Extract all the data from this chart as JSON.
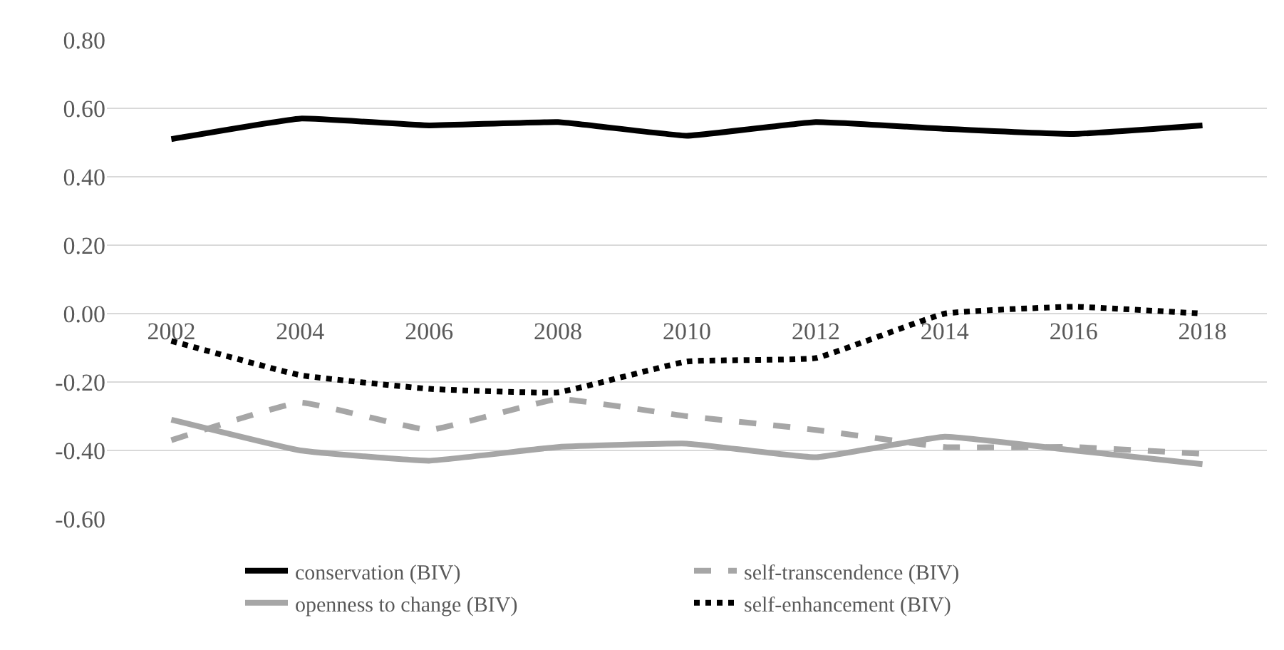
{
  "chart_data": {
    "type": "line",
    "categories": [
      "2002",
      "2004",
      "2006",
      "2008",
      "2010",
      "2012",
      "2014",
      "2016",
      "2018"
    ],
    "series": [
      {
        "name": "conservation (BIV)",
        "color": "#000000",
        "line_style": "solid",
        "values": [
          0.51,
          0.57,
          0.55,
          0.56,
          0.52,
          0.56,
          0.54,
          0.525,
          0.55
        ]
      },
      {
        "name": "self-transcendence (BIV)",
        "color": "#a6a6a6",
        "line_style": "dashed",
        "values": [
          -0.37,
          -0.26,
          -0.34,
          -0.25,
          -0.3,
          -0.34,
          -0.39,
          -0.39,
          -0.41
        ]
      },
      {
        "name": "openness to change (BIV)",
        "color": "#a6a6a6",
        "line_style": "solid",
        "values": [
          -0.31,
          -0.4,
          -0.43,
          -0.39,
          -0.38,
          -0.42,
          -0.36,
          -0.4,
          -0.44
        ]
      },
      {
        "name": "self-enhancement (BIV)",
        "color": "#000000",
        "line_style": "dotted",
        "values": [
          -0.08,
          -0.18,
          -0.22,
          -0.23,
          -0.14,
          -0.13,
          0.0,
          0.02,
          0.0
        ]
      }
    ],
    "ylim": [
      -0.6,
      0.8
    ],
    "yticks": [
      {
        "value": -0.6,
        "label": "-0.60"
      },
      {
        "value": -0.4,
        "label": "-0.40"
      },
      {
        "value": -0.2,
        "label": "-0.20"
      },
      {
        "value": 0,
        "label": "0.00"
      },
      {
        "value": 0.2,
        "label": "0.20"
      },
      {
        "value": 0.4,
        "label": "0.40"
      },
      {
        "value": 0.6,
        "label": "0.60"
      },
      {
        "value": 0.8,
        "label": "0.80"
      }
    ],
    "grid": "y",
    "legend": "bottom"
  }
}
